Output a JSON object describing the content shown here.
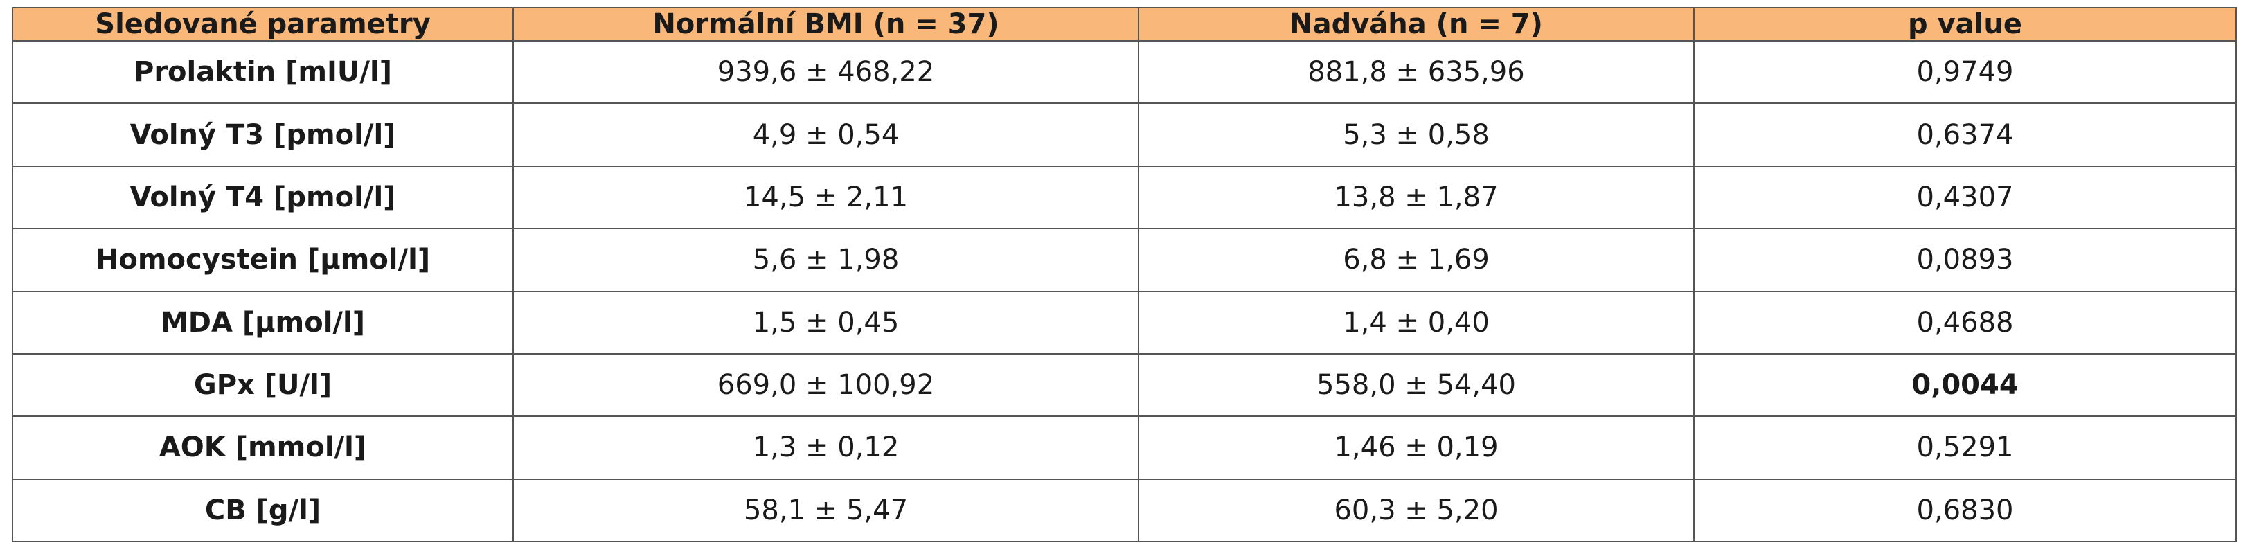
{
  "table": {
    "header": [
      "Sledované parametry",
      "Normální BMI (n = 37)",
      "Nadváha (n = 7)",
      "p value"
    ],
    "rows": [
      [
        "Prolaktin [mIU/l]",
        "939,6 ± 468,22",
        "881,8 ± 635,96",
        "0,9749"
      ],
      [
        "Volný T3 [pmol/l]",
        "4,9 ± 0,54",
        "5,3 ± 0,58",
        "0,6374"
      ],
      [
        "Volný T4 [pmol/l]",
        "14,5 ± 2,11",
        "13,8 ± 1,87",
        "0,4307"
      ],
      [
        "Homocystein [µmol/l]",
        "5,6 ± 1,98",
        "6,8 ± 1,69",
        "0,0893"
      ],
      [
        "MDA [µmol/l]",
        "1,5 ± 0,45",
        "1,4 ± 0,40",
        "0,4688"
      ],
      [
        "GPx [U/l]",
        "669,0 ± 100,92",
        "558,0 ± 54,40",
        "0,0044"
      ],
      [
        "AOK [mmol/l]",
        "1,3 ± 0,12",
        "1,46 ± 0,19",
        "0,5291"
      ],
      [
        "CB [g/l]",
        "58,1 ± 5,47",
        "60,3 ± 5,20",
        "0,6830"
      ]
    ]
  }
}
